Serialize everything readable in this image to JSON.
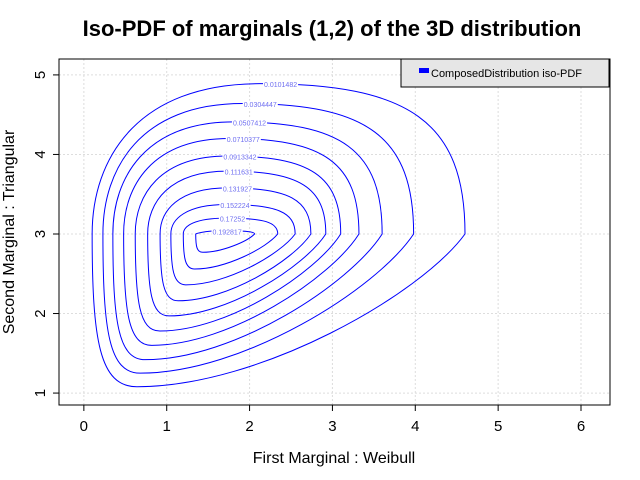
{
  "chart_data": {
    "type": "contour",
    "title": "Iso-PDF of marginals (1,2) of the 3D distribution",
    "xlabel": "First Marginal : Weibull",
    "ylabel": "Second Marginal : Triangular",
    "xlim": [
      -0.3,
      6.35
    ],
    "ylim": [
      0.85,
      5.2
    ],
    "xticks": [
      "0",
      "1",
      "2",
      "3",
      "4",
      "5",
      "6"
    ],
    "yticks": [
      "1",
      "2",
      "3",
      "4",
      "5"
    ],
    "grid": true,
    "legend": {
      "entries": [
        "ComposedDistribution iso-PDF"
      ],
      "position": "top-right"
    },
    "colors": {
      "line": "#0000ff",
      "label": "#6f6ff0",
      "grid": "#dddddd",
      "legend_bg": "#e6e6e6"
    },
    "levels": [
      {
        "label": "0.0101482",
        "x_left": 0.1,
        "x_right": 4.6,
        "y_bottom": 1.08,
        "y_top": 4.89
      },
      {
        "label": "0.0304447",
        "x_left": 0.23,
        "x_right": 3.98,
        "y_bottom": 1.25,
        "y_top": 4.64
      },
      {
        "label": "0.0507412",
        "x_left": 0.35,
        "x_right": 3.6,
        "y_bottom": 1.42,
        "y_top": 4.41
      },
      {
        "label": "0.0710377",
        "x_left": 0.48,
        "x_right": 3.32,
        "y_bottom": 1.6,
        "y_top": 4.2
      },
      {
        "label": "0.0913342",
        "x_left": 0.62,
        "x_right": 3.1,
        "y_bottom": 1.78,
        "y_top": 3.98
      },
      {
        "label": "0.111631",
        "x_left": 0.77,
        "x_right": 2.92,
        "y_bottom": 1.97,
        "y_top": 3.79
      },
      {
        "label": "0.131927",
        "x_left": 0.92,
        "x_right": 2.74,
        "y_bottom": 2.16,
        "y_top": 3.58
      },
      {
        "label": "0.152224",
        "x_left": 1.05,
        "x_right": 2.55,
        "y_bottom": 2.36,
        "y_top": 3.37
      },
      {
        "label": "0.17252",
        "x_left": 1.2,
        "x_right": 2.34,
        "y_bottom": 2.56,
        "y_top": 3.2
      },
      {
        "label": "0.192817",
        "x_left": 1.35,
        "x_right": 2.06,
        "y_bottom": 2.77,
        "y_top": 3.04
      }
    ]
  }
}
